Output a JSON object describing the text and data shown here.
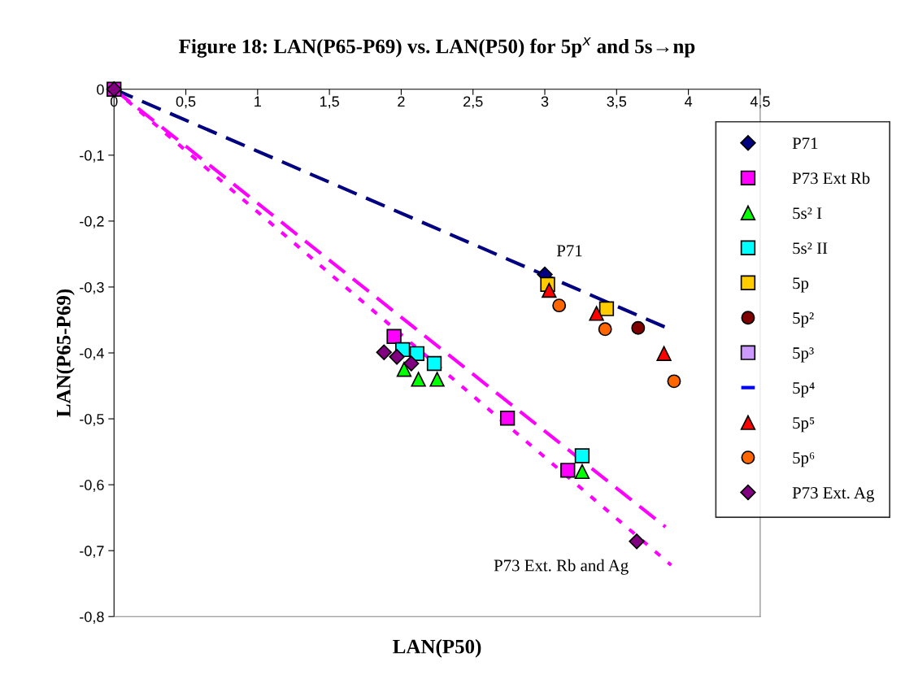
{
  "chart_data": {
    "type": "scatter",
    "title": "Figure 18: LAN(P65-P69) vs. LAN(P50) for 5p$^{x}$ and 5s→np",
    "xlabel": "LAN(P50)",
    "ylabel": "LAN(P65-P69)",
    "xlim": [
      0,
      4.5
    ],
    "ylim": [
      -0.8,
      0
    ],
    "xticks": [
      0,
      {
        "value": 0.5,
        "label": "0,5"
      },
      1,
      {
        "value": 1.5,
        "label": "1,5"
      },
      2,
      {
        "value": 2.5,
        "label": "2,5"
      },
      3,
      {
        "value": 3.5,
        "label": "3,5"
      },
      4,
      {
        "value": 4.5,
        "label": "4,5"
      }
    ],
    "yticks": [
      0,
      {
        "value": -0.1,
        "label": "-0,1"
      },
      {
        "value": -0.2,
        "label": "-0,2"
      },
      {
        "value": -0.3,
        "label": "-0,3"
      },
      {
        "value": -0.4,
        "label": "-0,4"
      },
      {
        "value": -0.5,
        "label": "-0,5"
      },
      {
        "value": -0.6,
        "label": "-0,6"
      },
      {
        "value": -0.7,
        "label": "-0,7"
      },
      {
        "value": -0.8,
        "label": "-0,8"
      }
    ],
    "grid": false,
    "legend": "right",
    "series": [
      {
        "type": "line",
        "color": "#000080",
        "line_style": "dashed",
        "x": [
          0,
          3.85
        ],
        "values": [
          0,
          -0.362
        ]
      },
      {
        "type": "line",
        "color": "#ff00ff",
        "line_style": "dashed",
        "x": [
          0,
          3.84
        ],
        "values": [
          0,
          -0.664
        ]
      },
      {
        "type": "line",
        "color": "#ff00ff",
        "line_style": "dotted",
        "x": [
          0,
          3.88
        ],
        "values": [
          0,
          -0.722
        ]
      },
      {
        "name": "P71",
        "color": "#000080",
        "marker": "diamond",
        "x": [
          3.0
        ],
        "values": [
          -0.281
        ]
      },
      {
        "name": "P73 Ext Rb",
        "color": "#ff00ff",
        "marker": "square",
        "x": [
          0,
          1.95,
          2.74,
          3.16
        ],
        "values": [
          0,
          -0.375,
          -0.499,
          -0.578
        ]
      },
      {
        "name": "5s² I",
        "color": "#00ff00",
        "marker": "triangle",
        "x": [
          2.02,
          2.12,
          2.25,
          3.26
        ],
        "values": [
          -0.425,
          -0.44,
          -0.44,
          -0.58
        ]
      },
      {
        "name": "5s² II",
        "color": "#00ffff",
        "marker": "square",
        "x": [
          2.01,
          2.11,
          2.23,
          3.26
        ],
        "values": [
          -0.395,
          -0.401,
          -0.416,
          -0.556
        ]
      },
      {
        "name": "5p",
        "color": "#ffcc00",
        "marker": "square",
        "x": [
          3.02,
          3.43
        ],
        "values": [
          -0.296,
          -0.333
        ]
      },
      {
        "name": "5p²",
        "color": "#800000",
        "marker": "circle",
        "x": [
          3.65
        ],
        "values": [
          -0.362
        ]
      },
      {
        "name": "5p³",
        "color": "#cc99ff",
        "marker": "square"
      },
      {
        "name": "5p⁴",
        "color": "#0000ff",
        "marker": "dash"
      },
      {
        "name": "5p⁵",
        "color": "#ff0000",
        "marker": "triangle",
        "x": [
          3.03,
          3.36,
          3.83
        ],
        "values": [
          -0.305,
          -0.34,
          -0.401
        ]
      },
      {
        "name": "5p⁶",
        "color": "#ff6600",
        "marker": "circle",
        "x": [
          3.1,
          3.42,
          3.9
        ],
        "values": [
          -0.328,
          -0.364,
          -0.443
        ]
      },
      {
        "name": "P73 Ext. Ag",
        "color": "#800080",
        "marker": "diamond",
        "x": [
          0,
          1.88,
          1.97,
          2.07,
          3.64
        ],
        "values": [
          0,
          -0.399,
          -0.406,
          -0.416,
          -0.686
        ]
      }
    ],
    "annotations": [
      "P71",
      "P73 Ext. Rb and Ag"
    ]
  }
}
